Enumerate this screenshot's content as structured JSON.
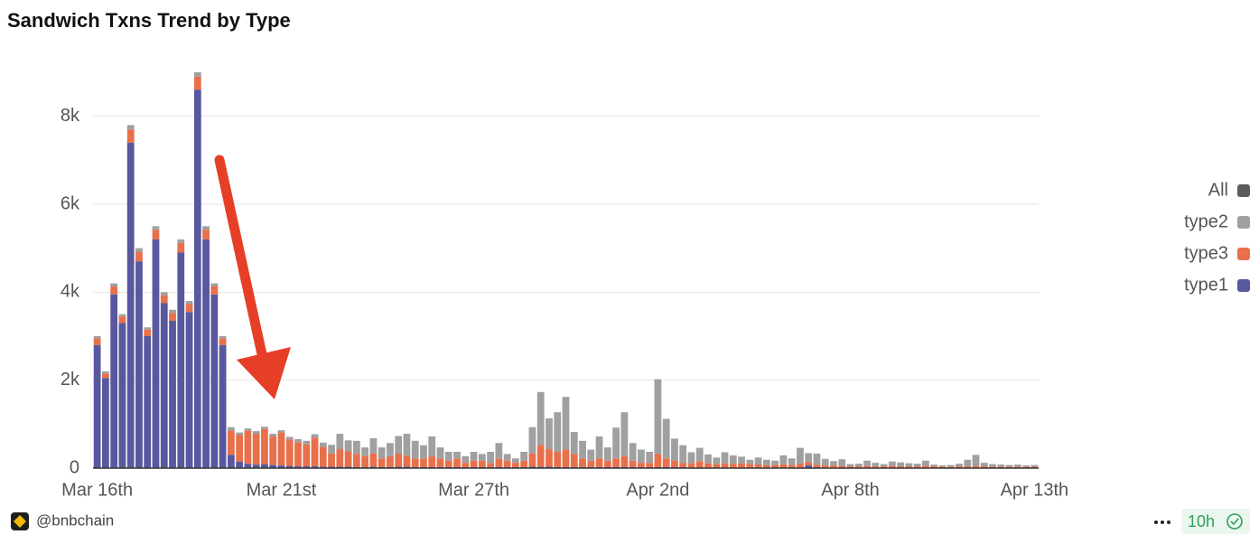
{
  "chart_data": {
    "type": "stacked-bar",
    "title": "Sandwich Txns Trend by Type",
    "categories": [
      "Mar 16th",
      null,
      null,
      null,
      null,
      null,
      null,
      null,
      null,
      null,
      null,
      null,
      null,
      null,
      null,
      null,
      null,
      null,
      null,
      null,
      null,
      null,
      "Mar 21st",
      null,
      null,
      null,
      null,
      null,
      null,
      null,
      null,
      null,
      null,
      null,
      null,
      null,
      null,
      null,
      null,
      null,
      null,
      null,
      null,
      null,
      null,
      "Mar 27th",
      null,
      null,
      null,
      null,
      null,
      null,
      null,
      null,
      null,
      null,
      null,
      null,
      null,
      null,
      null,
      null,
      null,
      null,
      null,
      null,
      null,
      "Apr 2nd",
      null,
      null,
      null,
      null,
      null,
      null,
      null,
      null,
      null,
      null,
      null,
      null,
      null,
      null,
      null,
      null,
      null,
      null,
      null,
      null,
      null,
      null,
      "Apr 8th",
      null,
      null,
      null,
      null,
      null,
      null,
      null,
      null,
      null,
      null,
      null,
      null,
      null,
      null,
      null,
      null,
      null,
      null,
      null,
      null,
      null,
      "Apr 13th"
    ],
    "series": [
      {
        "name": "All",
        "color": "#5c5c5c"
      },
      {
        "name": "type2",
        "color": "#a0a0a0",
        "values": [
          50,
          50,
          70,
          50,
          100,
          80,
          50,
          80,
          70,
          70,
          80,
          70,
          100,
          80,
          70,
          50,
          80,
          60,
          50,
          60,
          50,
          60,
          50,
          60,
          70,
          80,
          80,
          100,
          200,
          350,
          250,
          300,
          200,
          350,
          250,
          300,
          400,
          500,
          400,
          300,
          450,
          250,
          200,
          150,
          150,
          200,
          150,
          250,
          350,
          150,
          100,
          200,
          600,
          1200,
          700,
          900,
          1200,
          500,
          400,
          250,
          500,
          300,
          700,
          1000,
          400,
          300,
          250,
          1700,
          900,
          500,
          400,
          250,
          300,
          200,
          150,
          250,
          200,
          150,
          100,
          150,
          120,
          100,
          200,
          150,
          350,
          200,
          250,
          150,
          100,
          150,
          50,
          60,
          120,
          80,
          50,
          100,
          90,
          70,
          60,
          120,
          40,
          30,
          40,
          60,
          150,
          250,
          80,
          60,
          50,
          40,
          50,
          30,
          40
        ]
      },
      {
        "name": "type3",
        "color": "#e8704b",
        "values": [
          150,
          100,
          180,
          150,
          300,
          220,
          150,
          220,
          180,
          180,
          220,
          180,
          300,
          220,
          180,
          150,
          550,
          600,
          750,
          700,
          800,
          650,
          750,
          600,
          550,
          500,
          650,
          450,
          300,
          400,
          350,
          300,
          250,
          300,
          200,
          250,
          300,
          250,
          200,
          200,
          250,
          200,
          150,
          200,
          100,
          150,
          150,
          100,
          200,
          150,
          100,
          150,
          300,
          500,
          400,
          350,
          400,
          300,
          200,
          150,
          200,
          150,
          200,
          250,
          150,
          100,
          100,
          300,
          200,
          150,
          100,
          100,
          150,
          100,
          80,
          100,
          80,
          100,
          80,
          80,
          60,
          60,
          80,
          60,
          100,
          80,
          60,
          50,
          50,
          40,
          30,
          30,
          40,
          30,
          30,
          40,
          30,
          30,
          30,
          40,
          30,
          20,
          20,
          30,
          30,
          40,
          30,
          20,
          20,
          20,
          20,
          20,
          20
        ]
      },
      {
        "name": "type1",
        "color": "#58589e",
        "values": [
          2800,
          2050,
          3950,
          3300,
          7400,
          4700,
          3000,
          5200,
          3750,
          3350,
          4900,
          3550,
          8600,
          5200,
          3950,
          2800,
          300,
          150,
          100,
          80,
          90,
          70,
          60,
          50,
          40,
          40,
          40,
          30,
          30,
          30,
          30,
          20,
          20,
          30,
          20,
          20,
          30,
          30,
          20,
          20,
          20,
          20,
          20,
          20,
          20,
          20,
          20,
          20,
          20,
          20,
          20,
          20,
          30,
          30,
          30,
          20,
          20,
          20,
          20,
          20,
          20,
          20,
          20,
          20,
          20,
          20,
          20,
          20,
          20,
          20,
          20,
          10,
          10,
          10,
          10,
          10,
          10,
          10,
          10,
          10,
          10,
          10,
          10,
          10,
          10,
          60,
          20,
          10,
          10,
          10,
          10,
          10,
          10,
          10,
          10,
          10,
          10,
          10,
          10,
          10,
          10,
          10,
          10,
          10,
          10,
          10,
          10,
          10,
          10,
          10,
          10,
          10,
          10
        ]
      }
    ],
    "ylim": [
      0,
      9000
    ],
    "yticks": [
      0,
      {
        "value": 2000,
        "label": "2k"
      },
      {
        "value": 4000,
        "label": "4k"
      },
      {
        "value": 6000,
        "label": "6k"
      },
      {
        "value": 8000,
        "label": "8k"
      }
    ],
    "grid": true,
    "legend": "right"
  },
  "footer": {
    "source": "@bnbchain",
    "age": "10h"
  }
}
